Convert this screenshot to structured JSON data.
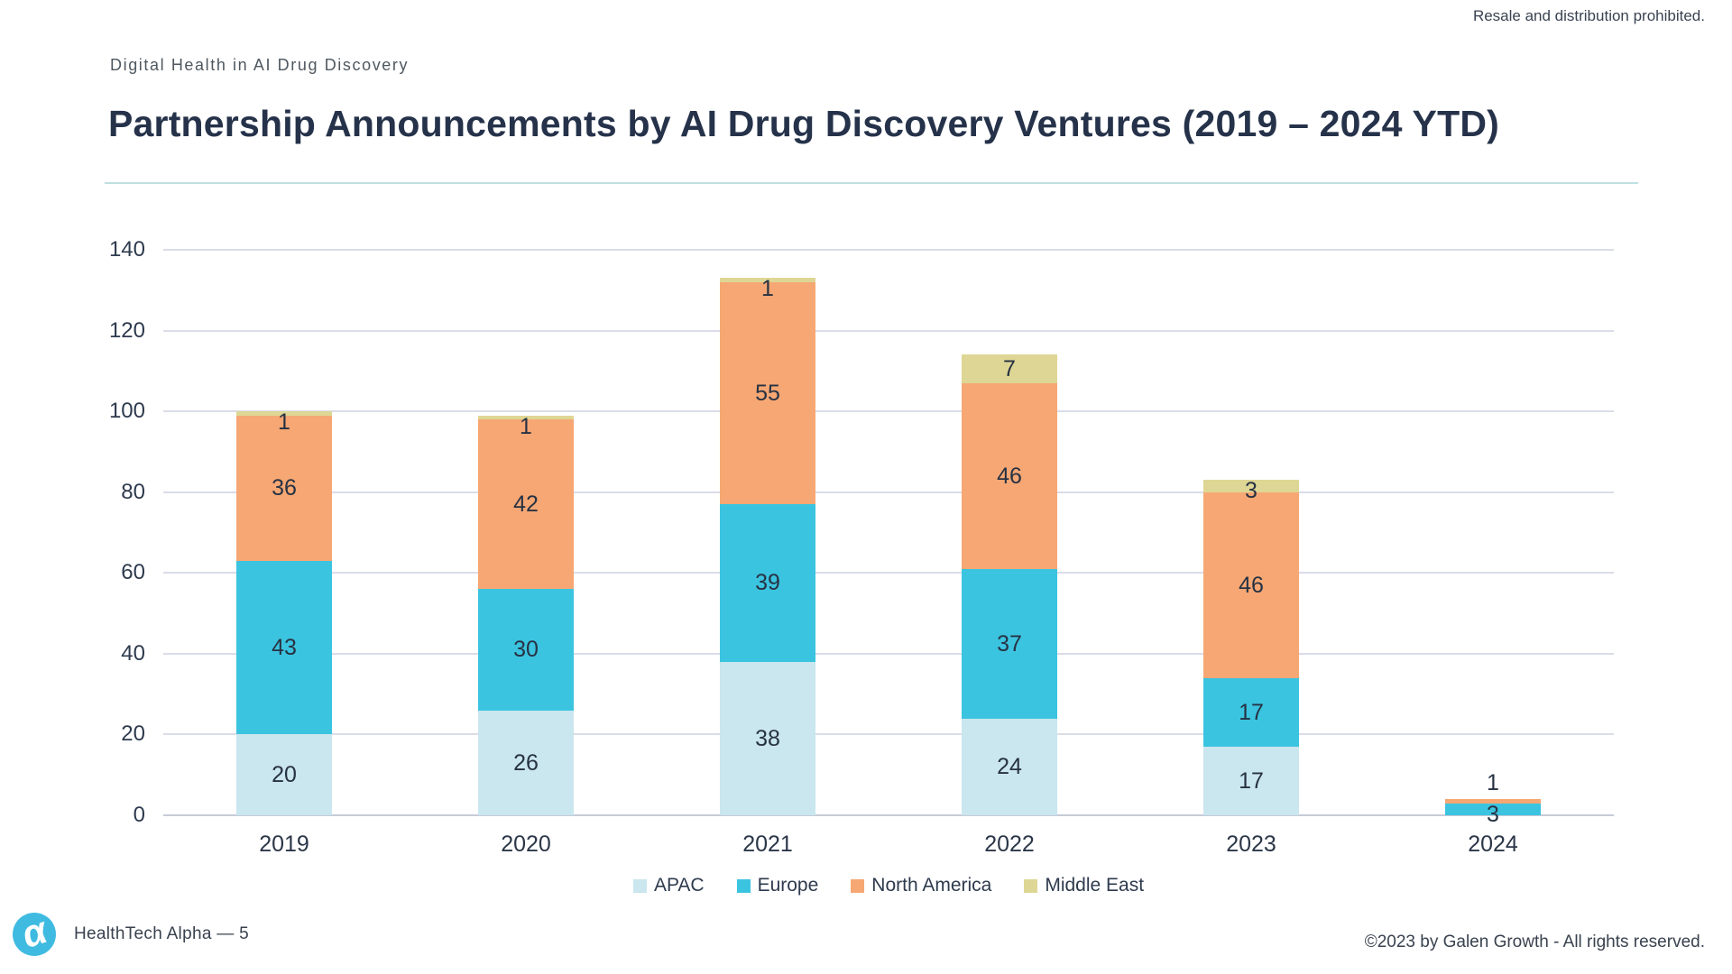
{
  "header": {
    "disclaimer": "Resale and distribution prohibited.",
    "eyebrow": "Digital Health in AI Drug Discovery",
    "title": "Partnership Announcements by AI Drug Discovery Ventures (2019 – 2024 YTD)"
  },
  "chart_data": {
    "type": "bar",
    "stacked": true,
    "title": "Partnership Announcements by AI Drug Discovery Ventures (2019 – 2024 YTD)",
    "categories": [
      "2019",
      "2020",
      "2021",
      "2022",
      "2023",
      "2024"
    ],
    "series": [
      {
        "name": "APAC",
        "color": "#cae6ee",
        "values": [
          20,
          26,
          38,
          24,
          17,
          0
        ]
      },
      {
        "name": "Europe",
        "color": "#3bc4e0",
        "values": [
          43,
          30,
          39,
          37,
          17,
          3
        ]
      },
      {
        "name": "North America",
        "color": "#f6a773",
        "values": [
          36,
          42,
          55,
          46,
          46,
          1
        ]
      },
      {
        "name": "Middle East",
        "color": "#ded694",
        "values": [
          1,
          1,
          1,
          7,
          3,
          0
        ]
      }
    ],
    "totals": [
      100,
      99,
      133,
      114,
      83,
      4
    ],
    "ylim": [
      0,
      140
    ],
    "ytick_step": 20,
    "xlabel": "",
    "ylabel": "",
    "grid": true,
    "legend_position": "bottom",
    "outside_labels": [
      {
        "series": "North America",
        "category": "2024"
      }
    ],
    "label_color": "#273243",
    "gridline_color": "#dadde8"
  },
  "footer": {
    "brand_line": "HealthTech Alpha  —  5",
    "logo_glyph": "α",
    "copyright": "©2023 by Galen Growth  - All rights reserved."
  }
}
